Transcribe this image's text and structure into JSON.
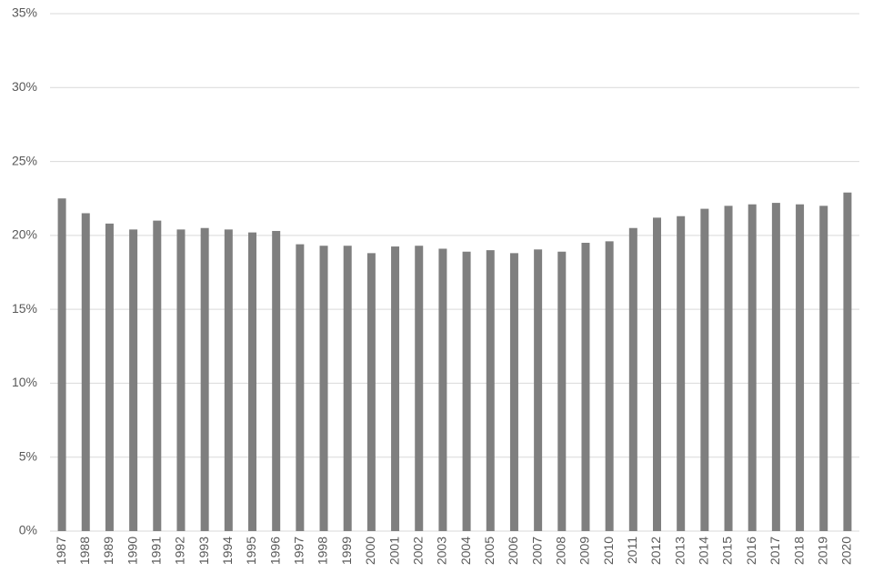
{
  "chart_data": {
    "type": "bar",
    "categories": [
      "1987",
      "1988",
      "1989",
      "1990",
      "1991",
      "1992",
      "1993",
      "1994",
      "1995",
      "1996",
      "1997",
      "1998",
      "1999",
      "2000",
      "2001",
      "2002",
      "2003",
      "2004",
      "2005",
      "2006",
      "2007",
      "2008",
      "2009",
      "2010",
      "2011",
      "2012",
      "2013",
      "2014",
      "2015",
      "2016",
      "2017",
      "2018",
      "2019",
      "2020"
    ],
    "values": [
      22.5,
      21.5,
      20.8,
      20.4,
      21.0,
      20.4,
      20.5,
      20.4,
      20.2,
      20.3,
      19.4,
      19.3,
      19.3,
      18.8,
      19.25,
      19.3,
      19.1,
      18.9,
      19.0,
      18.8,
      19.05,
      18.9,
      19.5,
      19.6,
      20.5,
      21.2,
      21.3,
      21.8,
      22.0,
      22.1,
      22.2,
      22.1,
      22.0,
      22.9
    ],
    "color": "#7f7f7f",
    "ylim": [
      0,
      35
    ],
    "yticks": [
      {
        "value": 0,
        "label": "0%"
      },
      {
        "value": 5,
        "label": "5%"
      },
      {
        "value": 10,
        "label": "10%"
      },
      {
        "value": 15,
        "label": "15%"
      },
      {
        "value": 20,
        "label": "20%"
      },
      {
        "value": 25,
        "label": "25%"
      },
      {
        "value": 30,
        "label": "30%"
      },
      {
        "value": 35,
        "label": "35%"
      }
    ],
    "grid": true
  }
}
